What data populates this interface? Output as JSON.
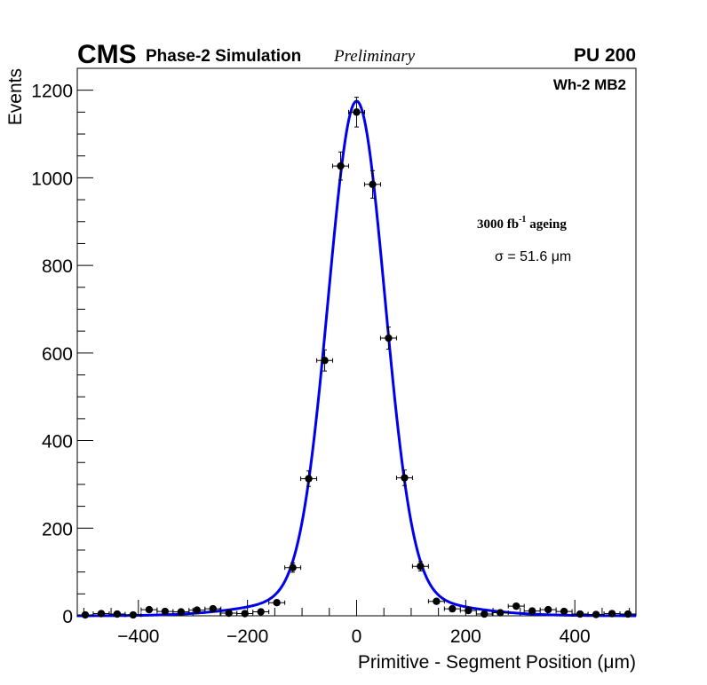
{
  "header": {
    "experiment": "CMS",
    "subtitle": "Phase-2 Simulation",
    "status": "Preliminary",
    "pileup": "PU 200"
  },
  "annotations": {
    "station": "Wh-2 MB2",
    "ageing_prefix": "3000 fb",
    "ageing_exponent": "-1",
    "ageing_suffix": " ageing",
    "sigma": "σ = 51.6 μm"
  },
  "chart_data": {
    "type": "scatter",
    "xlabel": "Primitive - Segment Position (μm)",
    "ylabel": "Events",
    "xlim": [
      -512,
      512
    ],
    "ylim": [
      0,
      1250
    ],
    "xticks": [
      -400,
      -200,
      0,
      200,
      400
    ],
    "yticks": [
      0,
      200,
      400,
      600,
      800,
      1000,
      1200
    ],
    "bin_width": 29.26,
    "grid": false,
    "series": [
      {
        "kind": "points_with_errors",
        "x": [
          -497.4,
          -468.1,
          -438.9,
          -409.6,
          -380.3,
          -351.1,
          -321.8,
          -292.6,
          -263.3,
          -234.1,
          -204.8,
          -175.5,
          -146.3,
          -117.0,
          -87.8,
          -58.5,
          -29.3,
          0.0,
          29.3,
          58.5,
          87.8,
          117.0,
          146.3,
          175.5,
          204.8,
          234.1,
          263.3,
          292.6,
          321.8,
          351.1,
          380.3,
          409.6,
          438.9,
          468.1,
          497.4
        ],
        "y": [
          2,
          5,
          4,
          2,
          14,
          10,
          9,
          13,
          16,
          6,
          5,
          9,
          30,
          110,
          313,
          583,
          1027,
          1150,
          985,
          634,
          315,
          113,
          33,
          16,
          12,
          4,
          7,
          22,
          11,
          14,
          10,
          4,
          3,
          5,
          4
        ],
        "yerr": [
          1.4,
          2.2,
          2.0,
          1.4,
          3.7,
          3.2,
          3.0,
          3.6,
          4.0,
          2.4,
          2.2,
          3.0,
          5.5,
          10.5,
          17.7,
          24.1,
          32.0,
          33.9,
          31.4,
          25.2,
          17.7,
          10.6,
          5.7,
          4.0,
          3.5,
          2.0,
          2.6,
          4.7,
          3.3,
          3.7,
          3.2,
          2.0,
          1.7,
          2.2,
          2.0
        ]
      },
      {
        "kind": "fit",
        "color": "#0000ee",
        "model": "double-gaussian",
        "mean": 0,
        "core_amplitude": 1120,
        "core_sigma": 51.6,
        "tail_amplitude": 55,
        "tail_sigma": 140
      }
    ]
  }
}
